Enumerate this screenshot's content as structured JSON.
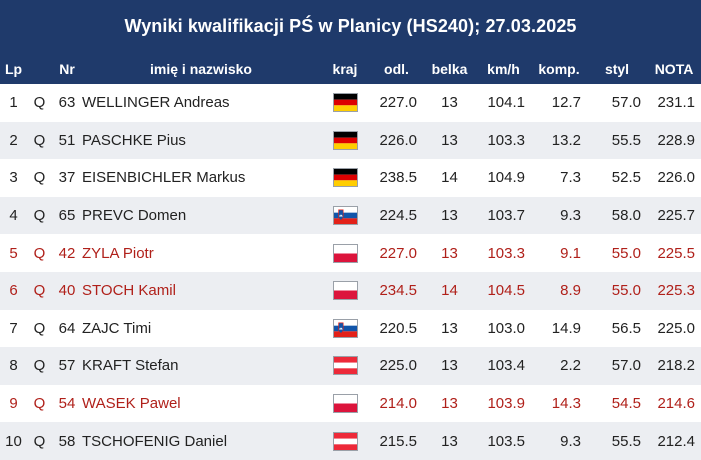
{
  "title": "Wyniki kwalifikacji PŚ w Planicy (HS240); 27.03.2025",
  "headers": {
    "lp": "Lp",
    "q": "",
    "nr": "Nr",
    "name": "imię i nazwisko",
    "kraj": "kraj",
    "odl": "odl.",
    "belka": "belka",
    "kmh": "km/h",
    "komp": "komp.",
    "styl": "styl",
    "nota": "NOTA"
  },
  "rows": [
    {
      "lp": "1",
      "q": "Q",
      "nr": "63",
      "name": "WELLINGER Andreas",
      "flag": "ger-flag-icon",
      "odl": "227.0",
      "belka": "13",
      "kmh": "104.1",
      "komp": "12.7",
      "styl": "57.0",
      "nota": "231.1",
      "pl": false
    },
    {
      "lp": "2",
      "q": "Q",
      "nr": "51",
      "name": "PASCHKE Pius",
      "flag": "ger-flag-icon",
      "odl": "226.0",
      "belka": "13",
      "kmh": "103.3",
      "komp": "13.2",
      "styl": "55.5",
      "nota": "228.9",
      "pl": false
    },
    {
      "lp": "3",
      "q": "Q",
      "nr": "37",
      "name": "EISENBICHLER Markus",
      "flag": "ger-flag-icon",
      "odl": "238.5",
      "belka": "14",
      "kmh": "104.9",
      "komp": "7.3",
      "styl": "52.5",
      "nota": "226.0",
      "pl": false
    },
    {
      "lp": "4",
      "q": "Q",
      "nr": "65",
      "name": "PREVC Domen",
      "flag": "slo-flag-icon",
      "odl": "224.5",
      "belka": "13",
      "kmh": "103.7",
      "komp": "9.3",
      "styl": "58.0",
      "nota": "225.7",
      "pl": false
    },
    {
      "lp": "5",
      "q": "Q",
      "nr": "42",
      "name": "ZYLA Piotr",
      "flag": "pol-flag-icon",
      "odl": "227.0",
      "belka": "13",
      "kmh": "103.3",
      "komp": "9.1",
      "styl": "55.0",
      "nota": "225.5",
      "pl": true
    },
    {
      "lp": "6",
      "q": "Q",
      "nr": "40",
      "name": "STOCH Kamil",
      "flag": "pol-flag-icon",
      "odl": "234.5",
      "belka": "14",
      "kmh": "104.5",
      "komp": "8.9",
      "styl": "55.0",
      "nota": "225.3",
      "pl": true
    },
    {
      "lp": "7",
      "q": "Q",
      "nr": "64",
      "name": "ZAJC Timi",
      "flag": "slo-flag-icon",
      "odl": "220.5",
      "belka": "13",
      "kmh": "103.0",
      "komp": "14.9",
      "styl": "56.5",
      "nota": "225.0",
      "pl": false
    },
    {
      "lp": "8",
      "q": "Q",
      "nr": "57",
      "name": "KRAFT Stefan",
      "flag": "aut-flag-icon",
      "odl": "225.0",
      "belka": "13",
      "kmh": "103.4",
      "komp": "2.2",
      "styl": "57.0",
      "nota": "218.2",
      "pl": false
    },
    {
      "lp": "9",
      "q": "Q",
      "nr": "54",
      "name": "WASEK Pawel",
      "flag": "pol-flag-icon",
      "odl": "214.0",
      "belka": "13",
      "kmh": "103.9",
      "komp": "14.3",
      "styl": "54.5",
      "nota": "214.6",
      "pl": true
    },
    {
      "lp": "10",
      "q": "Q",
      "nr": "58",
      "name": "TSCHOFENIG Daniel",
      "flag": "aut-flag-icon",
      "odl": "215.5",
      "belka": "13",
      "kmh": "103.5",
      "komp": "9.3",
      "styl": "55.5",
      "nota": "212.4",
      "pl": false
    }
  ],
  "colors": {
    "header_bg": "#1f3a6b",
    "polish_text": "#b0201a",
    "row_alt": "#eceef2"
  }
}
